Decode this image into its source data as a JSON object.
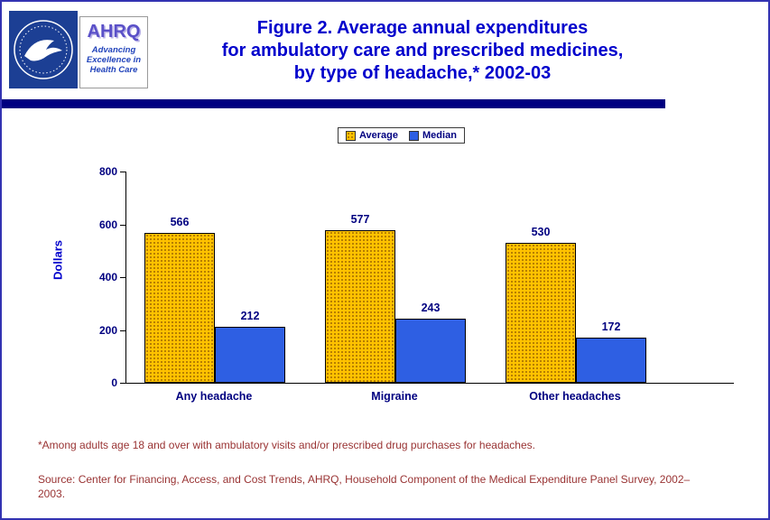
{
  "colors": {
    "page_border": "#3333B2",
    "navy": "#000080",
    "title_blue": "#0000CC",
    "note_red": "#993333",
    "hhs_blue": "#1C3F94",
    "ahrq_purple": "#5A50C8",
    "ahrq_blue": "#2244BB"
  },
  "header": {
    "title_lines": [
      "Figure 2. Average annual expenditures",
      "for ambulatory care and prescribed medicines,",
      "by type of headache,* 2002-03"
    ],
    "ahrq": {
      "name": "AHRQ",
      "tagline_lines": [
        "Advancing",
        "Excellence in",
        "Health Care"
      ]
    }
  },
  "chart_data": {
    "type": "bar",
    "title": "Figure 2. Average annual expenditures for ambulatory care and prescribed medicines, by type of headache,* 2002-03",
    "categories": [
      "Any headache",
      "Migraine",
      "Other headaches"
    ],
    "series": [
      {
        "name": "Average",
        "values": [
          566,
          577,
          530
        ],
        "color": "#FFC200",
        "pattern": "dots"
      },
      {
        "name": "Median",
        "values": [
          212,
          243,
          172
        ],
        "color": "#2E5FE3",
        "pattern": "solid"
      }
    ],
    "xlabel": "",
    "ylabel": "Dollars",
    "ylim": [
      0,
      800
    ],
    "yticks": [
      0,
      200,
      400,
      600,
      800
    ],
    "grid": false,
    "legend_position": "top-center"
  },
  "notes": {
    "footnote": "*Among adults age 18 and over with ambulatory visits and/or prescribed drug purchases for headaches.",
    "source": "Source: Center for Financing, Access, and Cost Trends, AHRQ, Household Component of the Medical Expenditure Panel Survey, 2002–2003."
  }
}
